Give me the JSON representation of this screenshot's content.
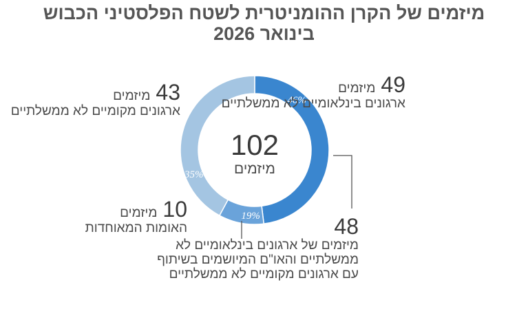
{
  "title_line1": "מיזמים של הקרן ההומניטרית לשטח הפלסטיני הכבוש",
  "title_line2": "בינואר 2026",
  "center": {
    "value": "102",
    "label": "מיזמים"
  },
  "chart_data": {
    "type": "pie",
    "title": "מיזמים של הקרן ההומניטרית לשטח הפלסטיני הכבוש בינואר 2026",
    "total": 102,
    "total_label": "מיזמים",
    "slices": [
      {
        "value": 49,
        "percent": "46%",
        "unit": "מיזמים",
        "label": "ארגונים בינלאומיים לא ממשלתיים",
        "color": "#3a86cf"
      },
      {
        "value": 48,
        "percent": "",
        "unit": "",
        "label": "מיזמים של ארגונים בינלאומיים לא ממשלתיים והאו\"ם המיושמים בשיתוף עם ארגונים מקומיים לא ממשלתיים",
        "label_lines": [
          "מיזמים של ארגונים בינלאומיים לא",
          "ממשלתיים והאו\"ם המיושמים בשיתוף",
          "עם ארגונים מקומיים לא ממשלתיים"
        ],
        "color": "#3a86cf"
      },
      {
        "value": 10,
        "percent": "19%",
        "unit": "מיזמים",
        "label": "האומות המאוחדות",
        "color": "#6aa3da"
      },
      {
        "value": 43,
        "percent": "35%",
        "unit": "מיזמים",
        "label": "ארגונים מקומיים לא ממשלתיים",
        "color": "#a4c5e2"
      }
    ]
  }
}
